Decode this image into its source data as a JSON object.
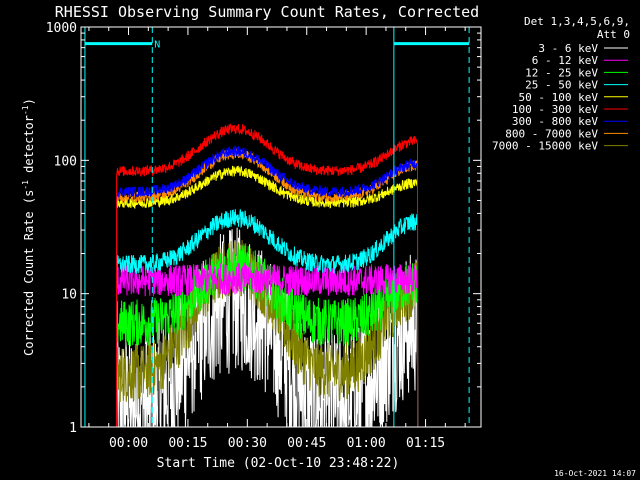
{
  "chart_data": {
    "type": "line",
    "title": "RHESSI Observing Summary Count Rates, Corrected",
    "xlabel": "Start Time (02-Oct-10 23:48:22)",
    "ylabel": "Corrected Count Rate (s⁻¹ detector⁻¹)",
    "ylabel_main": "Corrected Count Rate (s",
    "ylabel_mid": " detector",
    "ylabel_end": ")",
    "ylabel_sup": "-1",
    "yscale": "log",
    "ylim": [
      1,
      1000
    ],
    "xlim_minutes": [
      -12,
      89
    ],
    "ytick_values": [
      1,
      10,
      100,
      1000
    ],
    "ytick_labels": [
      "1",
      "10",
      "100",
      "1000"
    ],
    "xtick_minutes": [
      0,
      15,
      30,
      45,
      60,
      75
    ],
    "xtick_labels": [
      "00:00",
      "00:15",
      "00:30",
      "00:45",
      "01:00",
      "01:15"
    ],
    "data_range_minutes": [
      -3,
      73
    ],
    "night_intervals_minutes": [
      [
        -11,
        6
      ],
      [
        67,
        86
      ]
    ],
    "night_marker_level": 750,
    "n_flag_label": "N",
    "n_flag_minute": 6.5,
    "legend": {
      "header_line1": "Det 1,3,4,5,6,9,",
      "header_line2": "Att 0"
    },
    "series": [
      {
        "name": "3 - 6 keV",
        "color": "#ffffff",
        "base": 1.5,
        "peak": 9,
        "end": 6,
        "noise": 0.55
      },
      {
        "name": "6 - 12 keV",
        "color": "#ff00ff",
        "base": 12.5,
        "peak": 13,
        "end": 13,
        "noise": 0.12
      },
      {
        "name": "12 - 25 keV",
        "color": "#00ff00",
        "base": 6,
        "peak": 16,
        "end": 12,
        "noise": 0.18
      },
      {
        "name": "25 - 50 keV",
        "color": "#00ffff",
        "base": 16.5,
        "peak": 37,
        "end": 35,
        "noise": 0.07
      },
      {
        "name": "50 - 100 keV",
        "color": "#ffff00",
        "base": 48,
        "peak": 83,
        "end": 68,
        "noise": 0.04
      },
      {
        "name": "100 - 300 keV",
        "color": "#ff0000",
        "base": 83,
        "peak": 172,
        "end": 140,
        "noise": 0.04
      },
      {
        "name": "300 - 800 keV",
        "color": "#0000ff",
        "base": 58,
        "peak": 117,
        "end": 95,
        "noise": 0.04
      },
      {
        "name": "800 - 7000 keV",
        "color": "#ff8c00",
        "base": 53,
        "peak": 112,
        "end": 92,
        "noise": 0.04
      },
      {
        "name": "7000 - 15000 keV",
        "color": "#808000",
        "base": 2.5,
        "peak": 16,
        "end": 11,
        "noise": 0.22
      }
    ]
  },
  "footer_date": "16-Oct-2021 14:07"
}
